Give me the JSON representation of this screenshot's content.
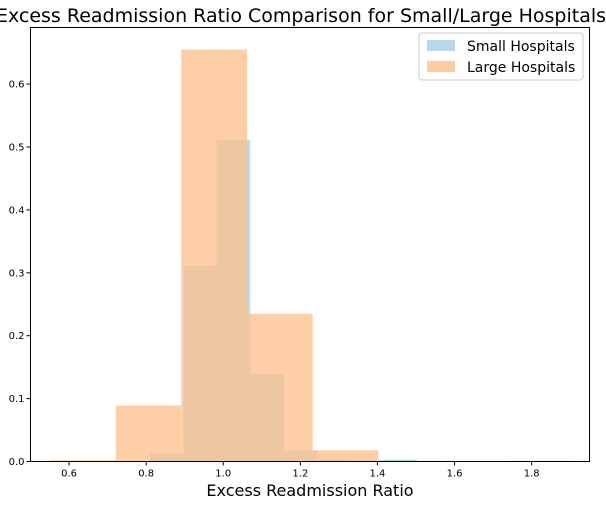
{
  "chart_data": {
    "type": "bar",
    "title": "Excess Readmission Ratio Comparison for Small/Large Hospitals",
    "xlabel": "Excess Readmission Ratio",
    "ylabel": "",
    "xlim": [
      0.5,
      1.95
    ],
    "ylim": [
      0,
      0.69
    ],
    "xticks": [
      "0.6",
      "0.8",
      "1.0",
      "1.2",
      "1.4",
      "1.6",
      "1.8"
    ],
    "yticks": [
      "0.0",
      "0.1",
      "0.2",
      "0.3",
      "0.4",
      "0.5",
      "0.6"
    ],
    "grid": false,
    "legend_position": "top-right",
    "series": [
      {
        "name": "Small Hospitals",
        "color": "#a6cee3",
        "bins": [
          {
            "x0": 0.81,
            "x1": 0.897,
            "value": 0.013
          },
          {
            "x0": 0.897,
            "x1": 0.983,
            "value": 0.311
          },
          {
            "x0": 0.983,
            "x1": 1.07,
            "value": 0.511
          },
          {
            "x0": 1.07,
            "x1": 1.157,
            "value": 0.139
          },
          {
            "x0": 1.157,
            "x1": 1.243,
            "value": 0.017
          },
          {
            "x0": 1.243,
            "x1": 1.33,
            "value": 0.004
          },
          {
            "x0": 1.33,
            "x1": 1.417,
            "value": 0.002
          },
          {
            "x0": 1.417,
            "x1": 1.503,
            "value": 0.003
          }
        ]
      },
      {
        "name": "Large Hospitals",
        "color": "#fdbf8a",
        "bins": [
          {
            "x0": 0.55,
            "x1": 0.721,
            "value": 0.002
          },
          {
            "x0": 0.721,
            "x1": 0.891,
            "value": 0.089
          },
          {
            "x0": 0.891,
            "x1": 1.062,
            "value": 0.655
          },
          {
            "x0": 1.062,
            "x1": 1.232,
            "value": 0.235
          },
          {
            "x0": 1.232,
            "x1": 1.402,
            "value": 0.018
          },
          {
            "x0": 1.402,
            "x1": 1.573,
            "value": 0.001
          },
          {
            "x0": 1.573,
            "x1": 1.743,
            "value": 0.0
          },
          {
            "x0": 1.743,
            "x1": 1.914,
            "value": 0.001
          }
        ]
      }
    ]
  }
}
